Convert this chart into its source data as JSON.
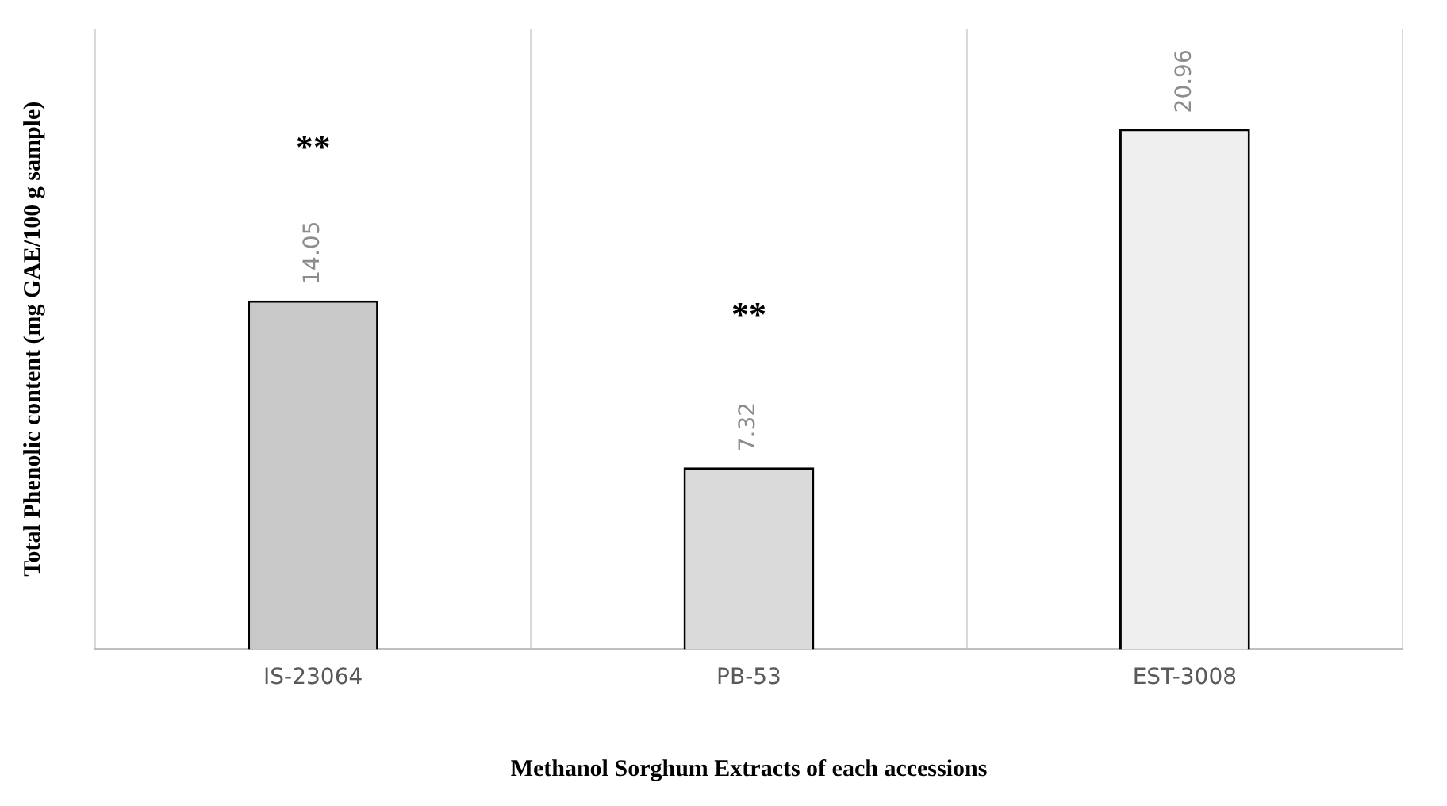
{
  "chart_data": {
    "type": "bar",
    "ylabel": "Total Phenolic content (mg GAE/100 g sample)",
    "xlabel": "Methanol Sorghum Extracts of each accessions",
    "categories": [
      "IS-23064",
      "PB-53",
      "EST-3008"
    ],
    "values": [
      14.05,
      7.32,
      20.96
    ],
    "colors": [
      "#c8c8c8",
      "#dadada",
      "#efefef"
    ],
    "data_labels": true,
    "grid": "x",
    "legend": false,
    "tick_labels": "x",
    "annotations": [
      "**",
      "**"
    ]
  }
}
